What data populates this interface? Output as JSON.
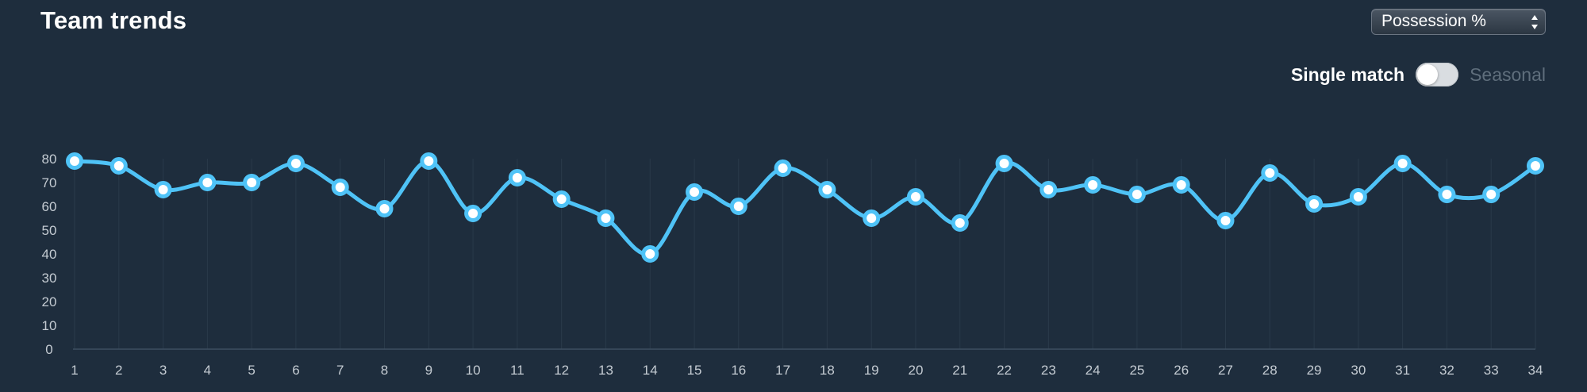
{
  "header": {
    "title": "Team trends",
    "metric_select": {
      "selected": "Possession %"
    },
    "toggle": {
      "left_label": "Single match",
      "right_label": "Seasonal",
      "state": "Single match"
    }
  },
  "colors": {
    "background": "#1e2d3d",
    "line": "#4fc3f7",
    "point_fill": "#ffffff",
    "axis_text": "#c4cbd2",
    "muted_text": "#5f6e7c"
  },
  "chart_data": {
    "type": "line",
    "title": "",
    "xlabel": "",
    "ylabel": "",
    "x": [
      1,
      2,
      3,
      4,
      5,
      6,
      7,
      8,
      9,
      10,
      11,
      12,
      13,
      14,
      15,
      16,
      17,
      18,
      19,
      20,
      21,
      22,
      23,
      24,
      25,
      26,
      27,
      28,
      29,
      30,
      31,
      32,
      33,
      34
    ],
    "yticks": [
      0,
      10,
      20,
      30,
      40,
      50,
      60,
      70,
      80
    ],
    "xticks": [
      "1",
      "2",
      "3",
      "4",
      "5",
      "6",
      "7",
      "8",
      "9",
      "10",
      "11",
      "12",
      "13",
      "14",
      "15",
      "16",
      "17",
      "18",
      "19",
      "20",
      "21",
      "22",
      "23",
      "24",
      "25",
      "26",
      "27",
      "28",
      "29",
      "30",
      "31",
      "32",
      "33",
      "34"
    ],
    "ylim": [
      0,
      80
    ],
    "grid": "vertical",
    "legend": "none",
    "series": [
      {
        "values": [
          79,
          77,
          67,
          70,
          70,
          78,
          68,
          59,
          79,
          57,
          72,
          63,
          55,
          40,
          66,
          60,
          76,
          67,
          55,
          64,
          53,
          78,
          67,
          69,
          65,
          69,
          54,
          74,
          61,
          64,
          78,
          65,
          65,
          77
        ]
      }
    ]
  }
}
